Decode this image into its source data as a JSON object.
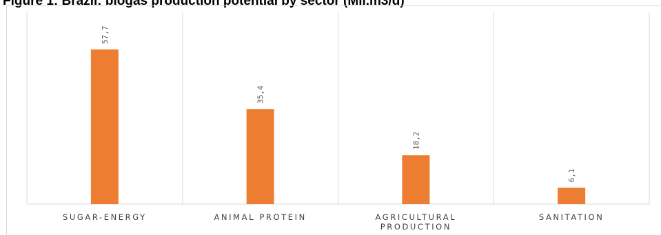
{
  "chart_data": {
    "type": "bar",
    "title": "Figure 1: Brazil: biogas production potential by sector (Mil.m3/d)",
    "categories": [
      [
        "SUGAR-ENERGY"
      ],
      [
        "ANIMAL PROTEIN"
      ],
      [
        "AGRICULTURAL",
        "PRODUCTION"
      ],
      [
        "SANITATION"
      ]
    ],
    "values": [
      57.7,
      35.4,
      18.2,
      6.1
    ],
    "value_labels": [
      "57,7",
      "35,4",
      "18,2",
      "6,1"
    ],
    "ylim": [
      0,
      60
    ],
    "bar_color": "#ed7d31",
    "grid": false,
    "legend": "none"
  }
}
